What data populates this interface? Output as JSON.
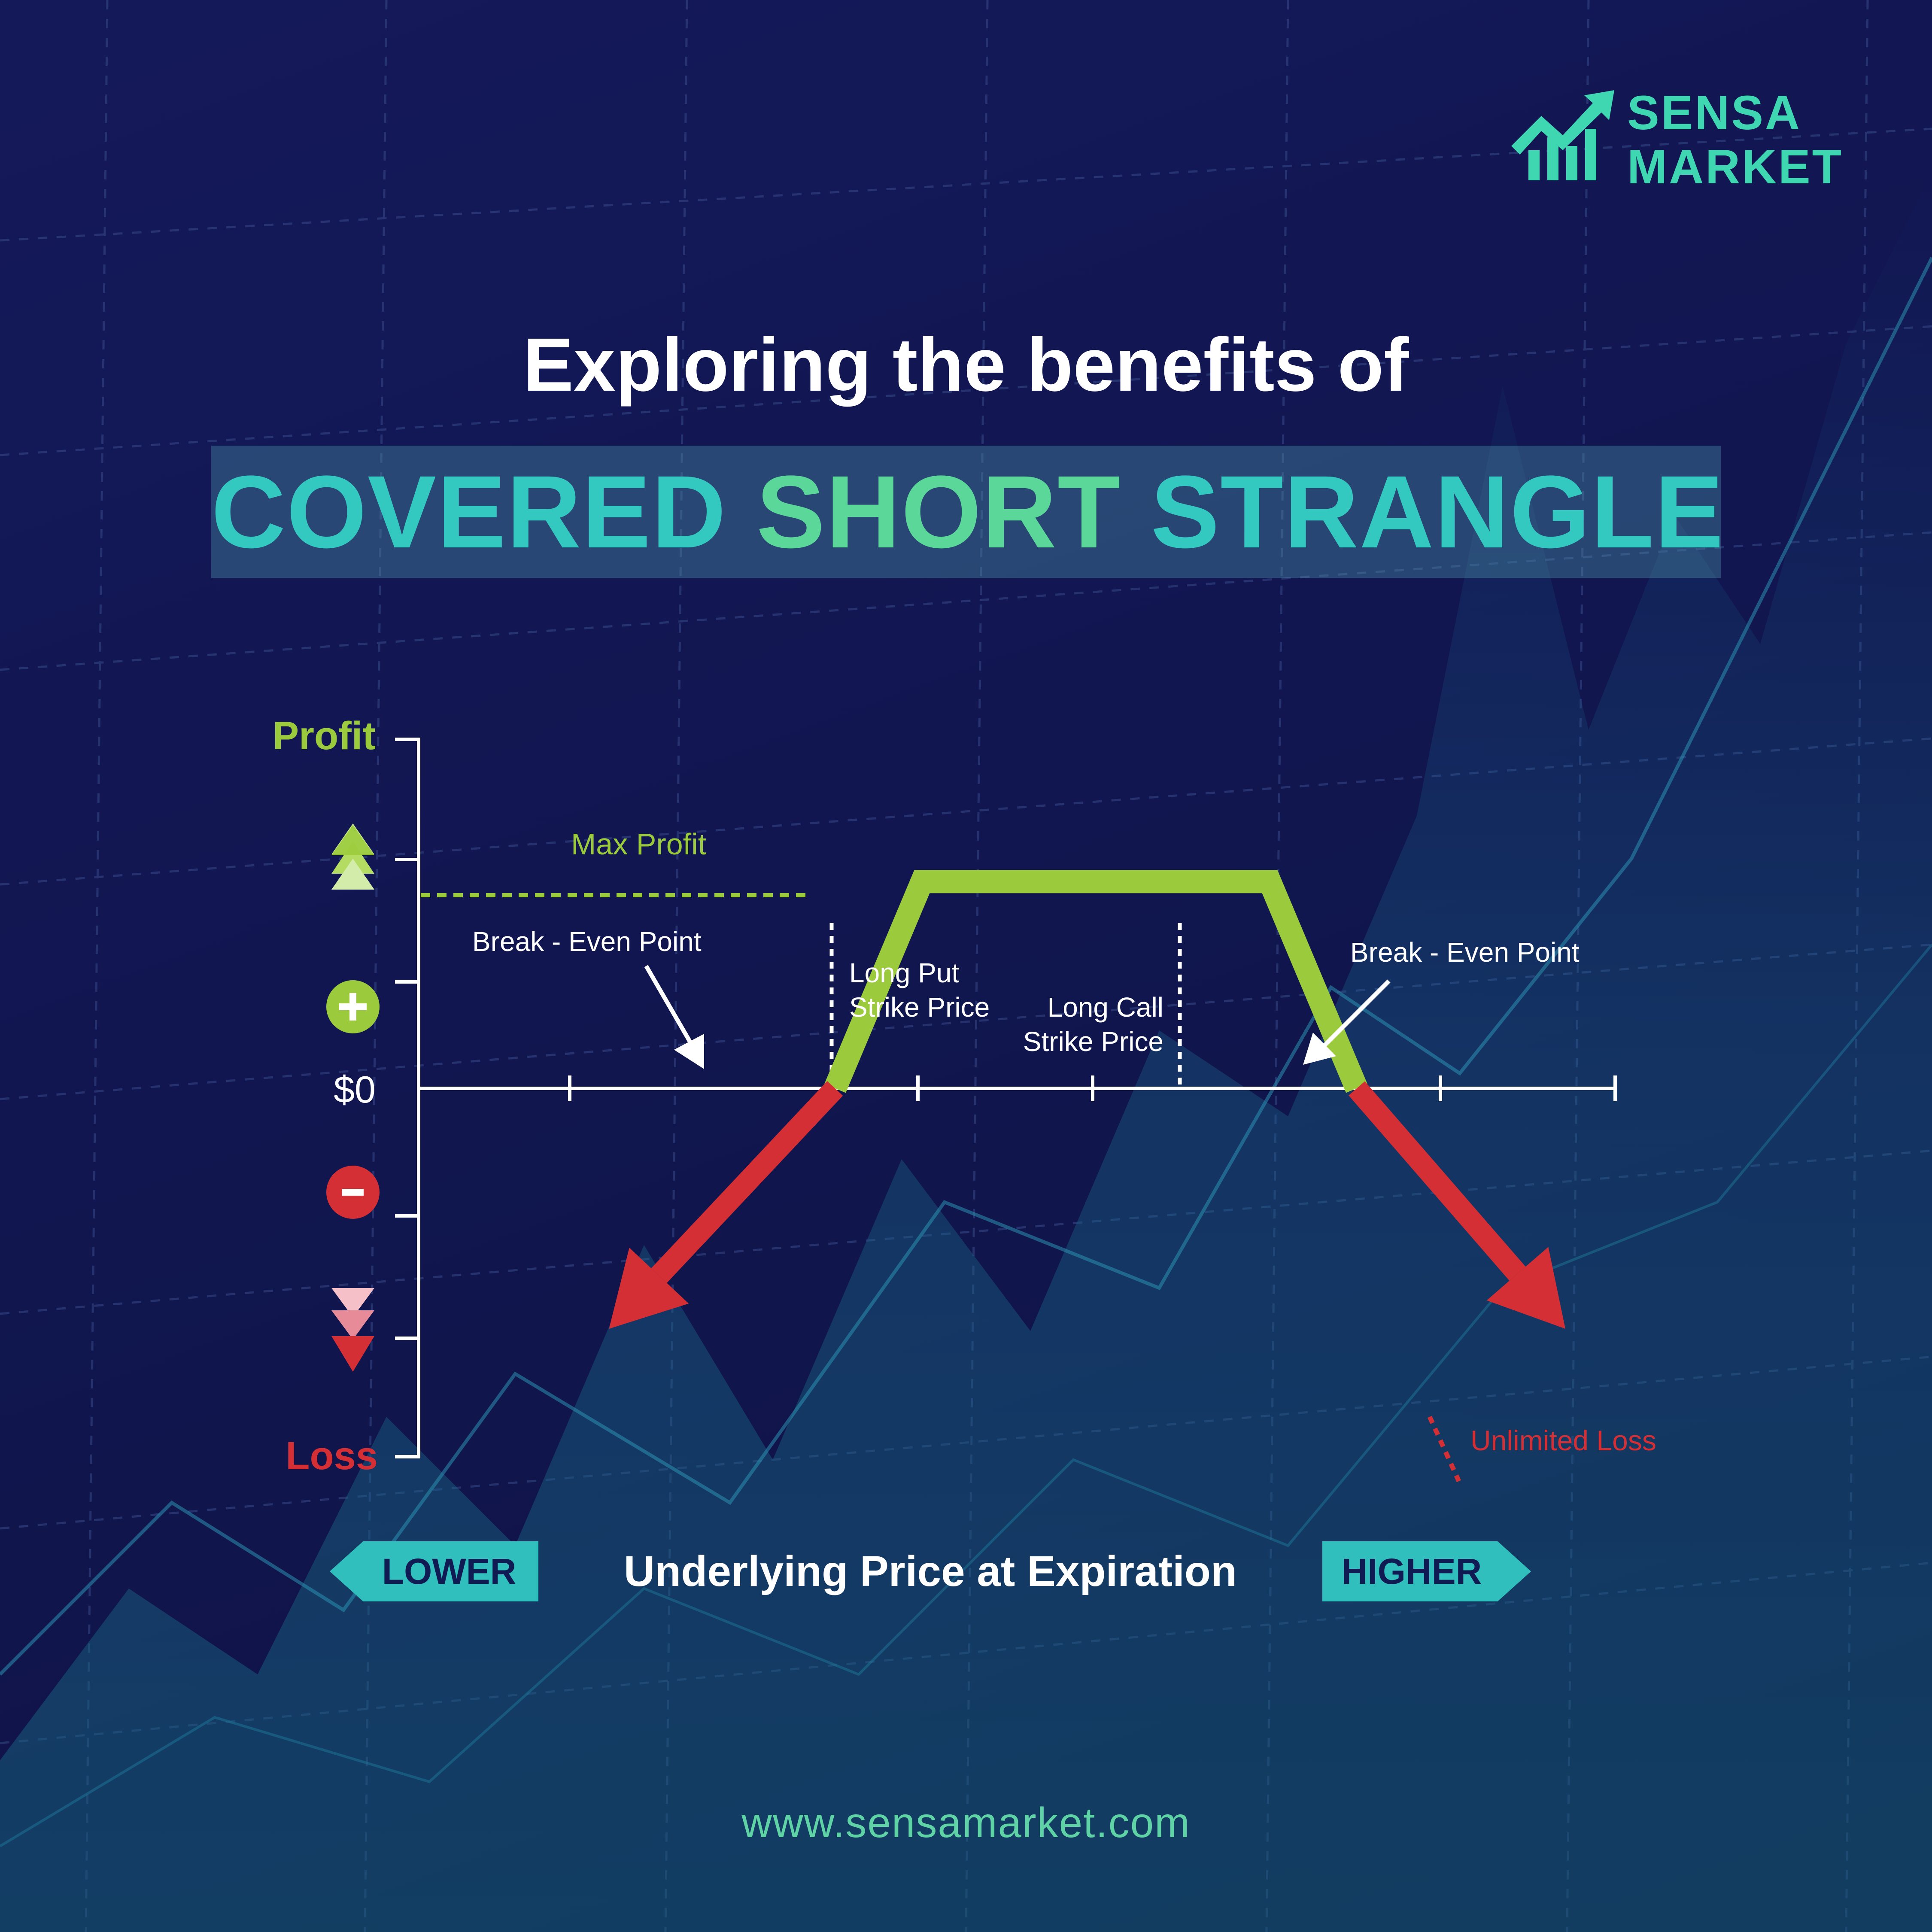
{
  "brand": {
    "line1": "SENSA",
    "line2": "MARKET",
    "logo_icon": "bar-chart-up-arrow-icon",
    "color": "#3fd6b2"
  },
  "headline": "Exploring the benefits of",
  "banner": {
    "word1": "COVERED",
    "word2": "SHORT",
    "word3": "STRANGLE"
  },
  "chart_data": {
    "type": "line",
    "y_axis": {
      "top_label": "Profit",
      "bottom_label": "Loss",
      "zero_label": "$0",
      "plus_icon": "plus-icon",
      "minus_icon": "minus-icon",
      "up_icon": "up-triangles-icon",
      "down_icon": "down-triangles-icon"
    },
    "x_axis": {
      "title": "Underlying Price at Expiration",
      "lower_label": "LOWER",
      "higher_label": "HIGHER"
    },
    "max_profit_level": 1,
    "max_loss_level": -1,
    "payoff": {
      "points": [
        {
          "x": 0.7,
          "y": -1.0
        },
        {
          "x": 2.0,
          "y": 0.0
        },
        {
          "x": 2.5,
          "y": 0.86
        },
        {
          "x": 4.5,
          "y": 0.86
        },
        {
          "x": 5.0,
          "y": 0.0
        },
        {
          "x": 6.2,
          "y": -1.0
        }
      ],
      "profit_color": "#9bcb3c",
      "loss_color": "#d42f35"
    },
    "annotations": {
      "max_profit": "Max Profit",
      "break_even_left": "Break - Even Point",
      "break_even_right": "Break - Even Point",
      "long_put_line1": "Long Put",
      "long_put_line2": "Strike Price",
      "long_call_line1": "Long Call",
      "long_call_line2": "Strike Price",
      "unlimited_loss": "Unlimited Loss"
    },
    "strikes": {
      "long_put": 2.5,
      "long_call": 4.5
    },
    "break_even": {
      "left": 2.0,
      "right": 5.0
    }
  },
  "website": "www.sensamarket.com"
}
